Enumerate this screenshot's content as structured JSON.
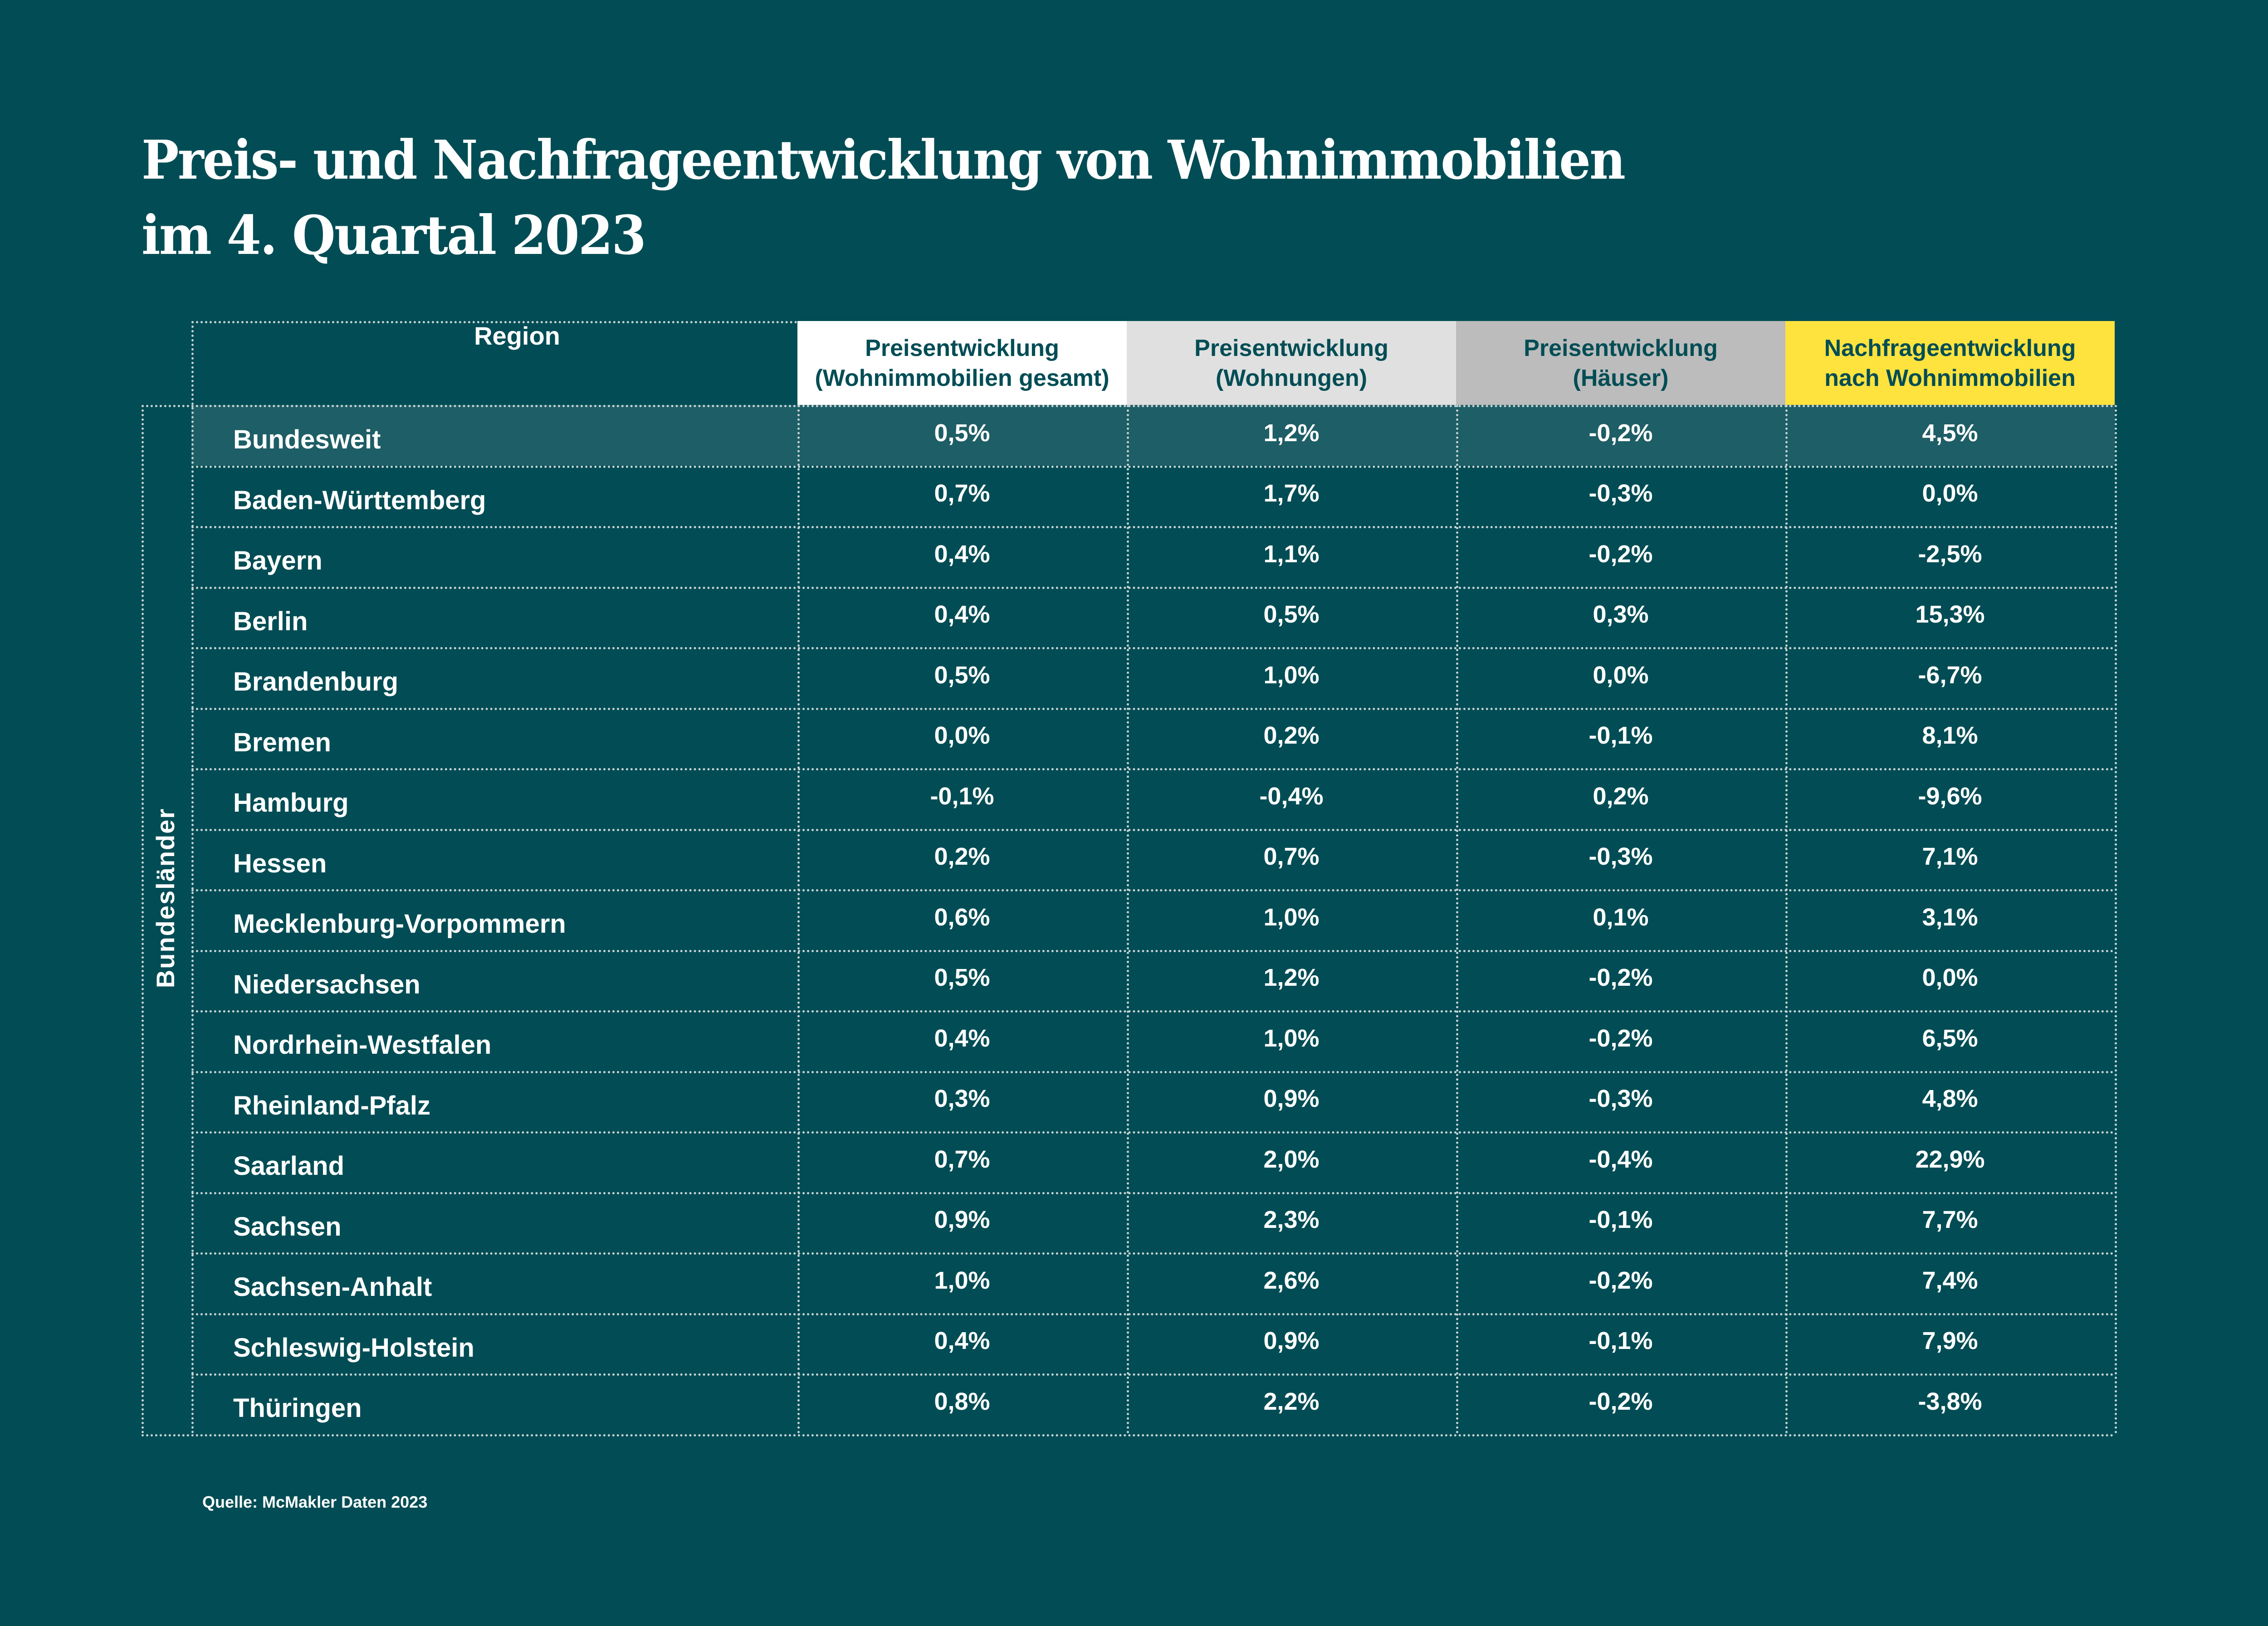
{
  "title": {
    "line1": "Preis- und Nachfrageentwicklung von Wohnimmobilien",
    "line2": "im 4. Quartal 2023"
  },
  "colors": {
    "background": "#024d55",
    "highlight_row": "#1e5e66",
    "header_col1": "#ffffff",
    "header_col2": "#e0e0e0",
    "header_col3": "#bcbcbc",
    "header_col4": "#fee33e",
    "text": "#ffffff",
    "header_text": "#024d55"
  },
  "source": "Quelle: McMakler Daten 2023",
  "chart_data": {
    "type": "table",
    "title": "Preis- und Nachfrageentwicklung von Wohnimmobilien im 4. Quartal 2023",
    "group_label": "Bundesländer",
    "columns": [
      {
        "key": "region",
        "label_lines": [
          "Region"
        ]
      },
      {
        "key": "gesamt",
        "label_lines": [
          "Preisentwicklung",
          "(Wohnimmobilien gesamt)"
        ]
      },
      {
        "key": "wohnungen",
        "label_lines": [
          "Preisentwicklung",
          "(Wohnungen)"
        ]
      },
      {
        "key": "haeuser",
        "label_lines": [
          "Preisentwicklung",
          "(Häuser)"
        ]
      },
      {
        "key": "nachfrage",
        "label_lines": [
          "Nachfrageentwicklung",
          "nach Wohnimmobilien"
        ]
      }
    ],
    "unit": "%",
    "rows": [
      {
        "region": "Bundesweit",
        "values": [
          "0,5%",
          "1,2%",
          "-0,2%",
          "4,5%"
        ],
        "highlight": true
      },
      {
        "region": "Baden-Württemberg",
        "values": [
          "0,7%",
          "1,7%",
          "-0,3%",
          "0,0%"
        ]
      },
      {
        "region": "Bayern",
        "values": [
          "0,4%",
          "1,1%",
          "-0,2%",
          "-2,5%"
        ]
      },
      {
        "region": "Berlin",
        "values": [
          "0,4%",
          "0,5%",
          "0,3%",
          "15,3%"
        ]
      },
      {
        "region": "Brandenburg",
        "values": [
          "0,5%",
          "1,0%",
          "0,0%",
          "-6,7%"
        ]
      },
      {
        "region": "Bremen",
        "values": [
          "0,0%",
          "0,2%",
          "-0,1%",
          "8,1%"
        ]
      },
      {
        "region": "Hamburg",
        "values": [
          "-0,1%",
          "-0,4%",
          "0,2%",
          "-9,6%"
        ]
      },
      {
        "region": "Hessen",
        "values": [
          "0,2%",
          "0,7%",
          "-0,3%",
          "7,1%"
        ]
      },
      {
        "region": "Mecklenburg-Vorpommern",
        "values": [
          "0,6%",
          "1,0%",
          "0,1%",
          "3,1%"
        ]
      },
      {
        "region": "Niedersachsen",
        "values": [
          "0,5%",
          "1,2%",
          "-0,2%",
          "0,0%"
        ]
      },
      {
        "region": "Nordrhein-Westfalen",
        "values": [
          "0,4%",
          "1,0%",
          "-0,2%",
          "6,5%"
        ]
      },
      {
        "region": "Rheinland-Pfalz",
        "values": [
          "0,3%",
          "0,9%",
          "-0,3%",
          "4,8%"
        ]
      },
      {
        "region": "Saarland",
        "values": [
          "0,7%",
          "2,0%",
          "-0,4%",
          "22,9%"
        ]
      },
      {
        "region": "Sachsen",
        "values": [
          "0,9%",
          "2,3%",
          "-0,1%",
          "7,7%"
        ]
      },
      {
        "region": "Sachsen-Anhalt",
        "values": [
          "1,0%",
          "2,6%",
          "-0,2%",
          "7,4%"
        ]
      },
      {
        "region": "Schleswig-Holstein",
        "values": [
          "0,4%",
          "0,9%",
          "-0,1%",
          "7,9%"
        ]
      },
      {
        "region": "Thüringen",
        "values": [
          "0,8%",
          "2,2%",
          "-0,2%",
          "-3,8%"
        ]
      }
    ],
    "numeric_values": {
      "gesamt": [
        0.5,
        0.7,
        0.4,
        0.4,
        0.5,
        0.0,
        -0.1,
        0.2,
        0.6,
        0.5,
        0.4,
        0.3,
        0.7,
        0.9,
        1.0,
        0.4,
        0.8
      ],
      "wohnungen": [
        1.2,
        1.7,
        1.1,
        0.5,
        1.0,
        0.2,
        -0.4,
        0.7,
        1.0,
        1.2,
        1.0,
        0.9,
        2.0,
        2.3,
        2.6,
        0.9,
        2.2
      ],
      "haeuser": [
        -0.2,
        -0.3,
        -0.2,
        0.3,
        0.0,
        -0.1,
        0.2,
        -0.3,
        0.1,
        -0.2,
        -0.2,
        -0.3,
        -0.4,
        -0.1,
        -0.2,
        -0.1,
        -0.2
      ],
      "nachfrage": [
        4.5,
        0.0,
        -2.5,
        15.3,
        -6.7,
        8.1,
        -9.6,
        7.1,
        3.1,
        0.0,
        6.5,
        4.8,
        22.9,
        7.7,
        7.4,
        7.9,
        -3.8
      ]
    }
  }
}
